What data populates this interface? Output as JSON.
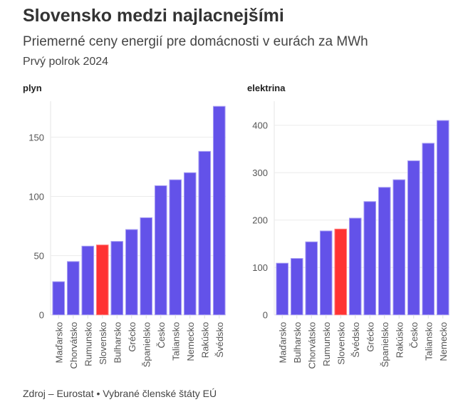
{
  "title": "Slovensko medzi najlacnejšími",
  "subtitle": "Priemerné ceny energií pre domácnosti v eurách za MWh",
  "period": "Prvý polrok 2024",
  "source": "Zdroj – Eurostat • Vybrané členské štáty EÚ",
  "colors": {
    "bar": "#6352e9",
    "highlight": "#ff3333"
  },
  "chart_data": [
    {
      "type": "bar",
      "title": "plyn",
      "highlight": "Slovensko",
      "categories": [
        "Maďarsko",
        "Chorvátsko",
        "Rumunsko",
        "Slovensko",
        "Bulharsko",
        "Grécko",
        "Španielsko",
        "Česko",
        "Taliansko",
        "Nemecko",
        "Rakúsko",
        "Švédsko"
      ],
      "values": [
        28,
        45,
        58,
        59,
        62,
        72,
        82,
        109,
        114,
        120,
        138,
        176
      ],
      "yticks": [
        0,
        50,
        100,
        150
      ],
      "ylim": [
        0,
        180
      ],
      "grid": true
    },
    {
      "type": "bar",
      "title": "elektrina",
      "highlight": "Slovensko",
      "categories": [
        "Maďarsko",
        "Bulharsko",
        "Chorvátsko",
        "Rumunsko",
        "Slovensko",
        "Švédsko",
        "Grécko",
        "Španielsko",
        "Rakúsko",
        "Česko",
        "Taliansko",
        "Nemecko"
      ],
      "values": [
        109,
        119,
        154,
        177,
        181,
        204,
        239,
        269,
        285,
        325,
        362,
        410
      ],
      "yticks": [
        0,
        100,
        200,
        300,
        400
      ],
      "ylim": [
        0,
        450
      ],
      "grid": true
    }
  ]
}
